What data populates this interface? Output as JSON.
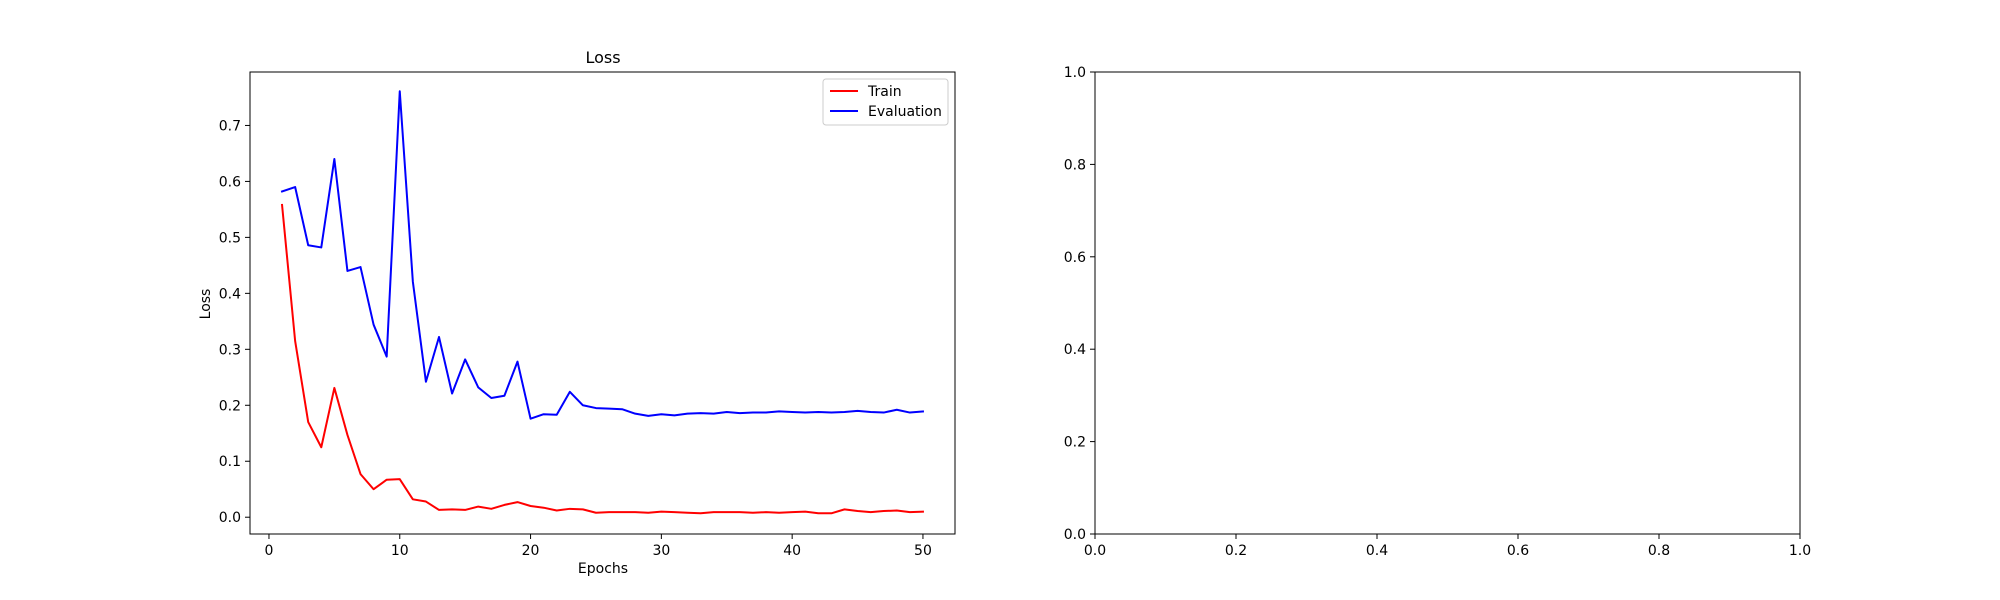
{
  "chart_data": [
    {
      "type": "line",
      "title": "Loss",
      "xlabel": "Epochs",
      "ylabel": "Loss",
      "xlim": [
        -1.45,
        52.45
      ],
      "ylim": [
        -0.03,
        0.7955
      ],
      "xticks": [
        0,
        10,
        20,
        30,
        40,
        50
      ],
      "xtick_labels": [
        "0",
        "10",
        "20",
        "30",
        "40",
        "50"
      ],
      "yticks": [
        0.0,
        0.1,
        0.2,
        0.3,
        0.4,
        0.5,
        0.6,
        0.7
      ],
      "ytick_labels": [
        "0.0",
        "0.1",
        "0.2",
        "0.3",
        "0.4",
        "0.5",
        "0.6",
        "0.7"
      ],
      "grid": false,
      "legend_position": "top-right",
      "x": [
        1,
        2,
        3,
        4,
        5,
        6,
        7,
        8,
        9,
        10,
        11,
        12,
        13,
        14,
        15,
        16,
        17,
        18,
        19,
        20,
        21,
        22,
        23,
        24,
        25,
        26,
        27,
        28,
        29,
        30,
        31,
        32,
        33,
        34,
        35,
        36,
        37,
        38,
        39,
        40,
        41,
        42,
        43,
        44,
        45,
        46,
        47,
        48,
        49,
        50
      ],
      "series": [
        {
          "name": "Train",
          "color": "#ff0000",
          "values": [
            0.558,
            0.315,
            0.17,
            0.125,
            0.231,
            0.147,
            0.077,
            0.05,
            0.067,
            0.068,
            0.032,
            0.028,
            0.013,
            0.014,
            0.013,
            0.019,
            0.015,
            0.022,
            0.027,
            0.02,
            0.017,
            0.012,
            0.015,
            0.014,
            0.008,
            0.009,
            0.009,
            0.009,
            0.008,
            0.01,
            0.009,
            0.008,
            0.007,
            0.009,
            0.009,
            0.009,
            0.008,
            0.009,
            0.008,
            0.009,
            0.01,
            0.007,
            0.007,
            0.014,
            0.011,
            0.009,
            0.011,
            0.012,
            0.009,
            0.01
          ]
        },
        {
          "name": "Evaluation",
          "color": "#0000ff",
          "values": [
            0.582,
            0.59,
            0.486,
            0.482,
            0.64,
            0.44,
            0.447,
            0.344,
            0.287,
            0.761,
            0.421,
            0.242,
            0.322,
            0.221,
            0.282,
            0.232,
            0.213,
            0.217,
            0.278,
            0.176,
            0.184,
            0.183,
            0.224,
            0.2,
            0.195,
            0.194,
            0.193,
            0.185,
            0.181,
            0.184,
            0.182,
            0.185,
            0.186,
            0.185,
            0.188,
            0.186,
            0.187,
            0.187,
            0.189,
            0.188,
            0.187,
            0.188,
            0.187,
            0.188,
            0.19,
            0.188,
            0.187,
            0.192,
            0.187,
            0.189
          ]
        }
      ]
    },
    {
      "type": "line",
      "title": "",
      "xlabel": "",
      "ylabel": "",
      "xlim": [
        0,
        1
      ],
      "ylim": [
        0,
        1
      ],
      "xticks": [
        0.0,
        0.2,
        0.4,
        0.6,
        0.8,
        1.0
      ],
      "xtick_labels": [
        "0.0",
        "0.2",
        "0.4",
        "0.6",
        "0.8",
        "1.0"
      ],
      "yticks": [
        0.0,
        0.2,
        0.4,
        0.6,
        0.8,
        1.0
      ],
      "ytick_labels": [
        "0.0",
        "0.2",
        "0.4",
        "0.6",
        "0.8",
        "1.0"
      ],
      "grid": false,
      "series": []
    }
  ]
}
